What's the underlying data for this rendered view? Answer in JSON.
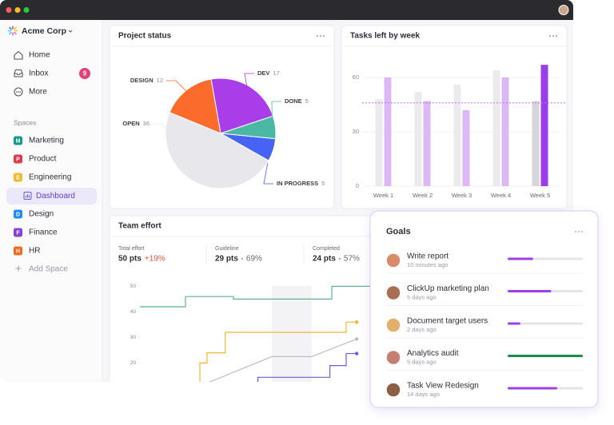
{
  "sidebar": {
    "workspace": "Acme Corp",
    "nav": [
      {
        "label": "Home"
      },
      {
        "label": "Inbox",
        "badge": 9
      },
      {
        "label": "More"
      }
    ],
    "spaces_heading": "Spaces",
    "spaces": [
      {
        "initial": "M",
        "label": "Marketing",
        "color": "#13998a"
      },
      {
        "initial": "P",
        "label": "Product",
        "color": "#e0394b"
      },
      {
        "initial": "E",
        "label": "Engineering",
        "color": "#f5b82e"
      },
      {
        "initial": "D",
        "label": "Design",
        "color": "#1d8cf8"
      },
      {
        "initial": "F",
        "label": "Finance",
        "color": "#8b3fd9"
      },
      {
        "initial": "H",
        "label": "HR",
        "color": "#f06b1d"
      }
    ],
    "active_view": "Dashboard",
    "add_space": "Add Space"
  },
  "project_status": {
    "type": "pie",
    "title": "Project status",
    "categories": [
      "DEV",
      "DONE",
      "IN PROGRESS",
      "OPEN",
      "DESIGN"
    ],
    "values": [
      17,
      5,
      5,
      36,
      12
    ],
    "colors": [
      "#a93ee8",
      "#4bb8a4",
      "#4763f5",
      "#e8e8ec",
      "#fa6b2c"
    ]
  },
  "tasks_left_by_week": {
    "type": "bar",
    "title": "Tasks left by week",
    "categories": [
      "Week 1",
      "Week 2",
      "Week 3",
      "Week 4",
      "Week 5"
    ],
    "series": [
      {
        "colors": [
          "#ebebee",
          "#ebebee",
          "#ebebee",
          "#ebebee",
          "#d6d6da"
        ],
        "values": [
          48,
          52,
          56,
          64,
          47
        ]
      },
      {
        "colors": [
          "#dcb8f5",
          "#dcb8f5",
          "#dcb8f5",
          "#dcb8f5",
          "#9b3de8"
        ],
        "values": [
          60,
          47,
          42,
          60,
          67
        ]
      }
    ],
    "reference_line": 46,
    "reference_color": "#c26ef0",
    "ylim": [
      0,
      75
    ],
    "yticks": [
      0,
      30,
      60
    ],
    "grid": true
  },
  "team_effort": {
    "title": "Team effort",
    "stats": [
      {
        "label": "Total effort",
        "value": "50 pts",
        "change": "+19%"
      },
      {
        "label": "Guideline",
        "value": "29 pts",
        "change": "69%"
      },
      {
        "label": "Completed",
        "value": "24 pts",
        "change": "57%"
      }
    ],
    "chart": {
      "type": "line",
      "xlim": [
        0,
        24
      ],
      "ylim": [
        10,
        52
      ],
      "yticks": [
        20,
        30,
        40,
        50
      ],
      "series": [
        {
          "color": "#5fb38f",
          "end_marker": false,
          "x": [
            0,
            4.75,
            4.75,
            9.75,
            9.75,
            20,
            20,
            24
          ],
          "values": [
            42,
            42,
            46,
            46,
            45,
            45,
            50,
            50
          ]
        },
        {
          "color": "#f2b731",
          "end_marker": true,
          "x": [
            3.75,
            6.25,
            6.25,
            7,
            7,
            8.9,
            8.9,
            21.5,
            21.5,
            22.6
          ],
          "values": [
            11,
            11,
            20,
            20,
            24,
            24,
            32,
            32,
            36,
            36
          ]
        },
        {
          "color": "#bdbdc4",
          "end_marker": true,
          "x": [
            6.25,
            13.75,
            17.9,
            22.6
          ],
          "values": [
            11,
            22.5,
            22.5,
            29.4
          ]
        },
        {
          "color": "#6d5ce8",
          "end_marker": true,
          "x": [
            12.3,
            12.3,
            19.8,
            19.8,
            21.5,
            21.5,
            22.6
          ],
          "values": [
            11,
            14.4,
            14.4,
            19,
            19,
            23.7,
            23.7
          ]
        }
      ]
    }
  },
  "goals": {
    "title": "Goals",
    "items": [
      {
        "name": "Write report",
        "time": "10 minutes ago",
        "progress": 34,
        "color": "#a23ee8"
      },
      {
        "name": "ClickUp marketing plan",
        "time": "5 days ago",
        "progress": 58,
        "color": "#a23ee8"
      },
      {
        "name": "Document target users",
        "time": "2 days ago",
        "progress": 17,
        "color": "#a23ee8"
      },
      {
        "name": "Analytics audit",
        "time": "5 days ago",
        "progress": 100,
        "color": "#1e8a4a"
      },
      {
        "name": "Task View Redesign",
        "time": "14 days ago",
        "progress": 66,
        "color": "#a23ee8"
      }
    ]
  }
}
